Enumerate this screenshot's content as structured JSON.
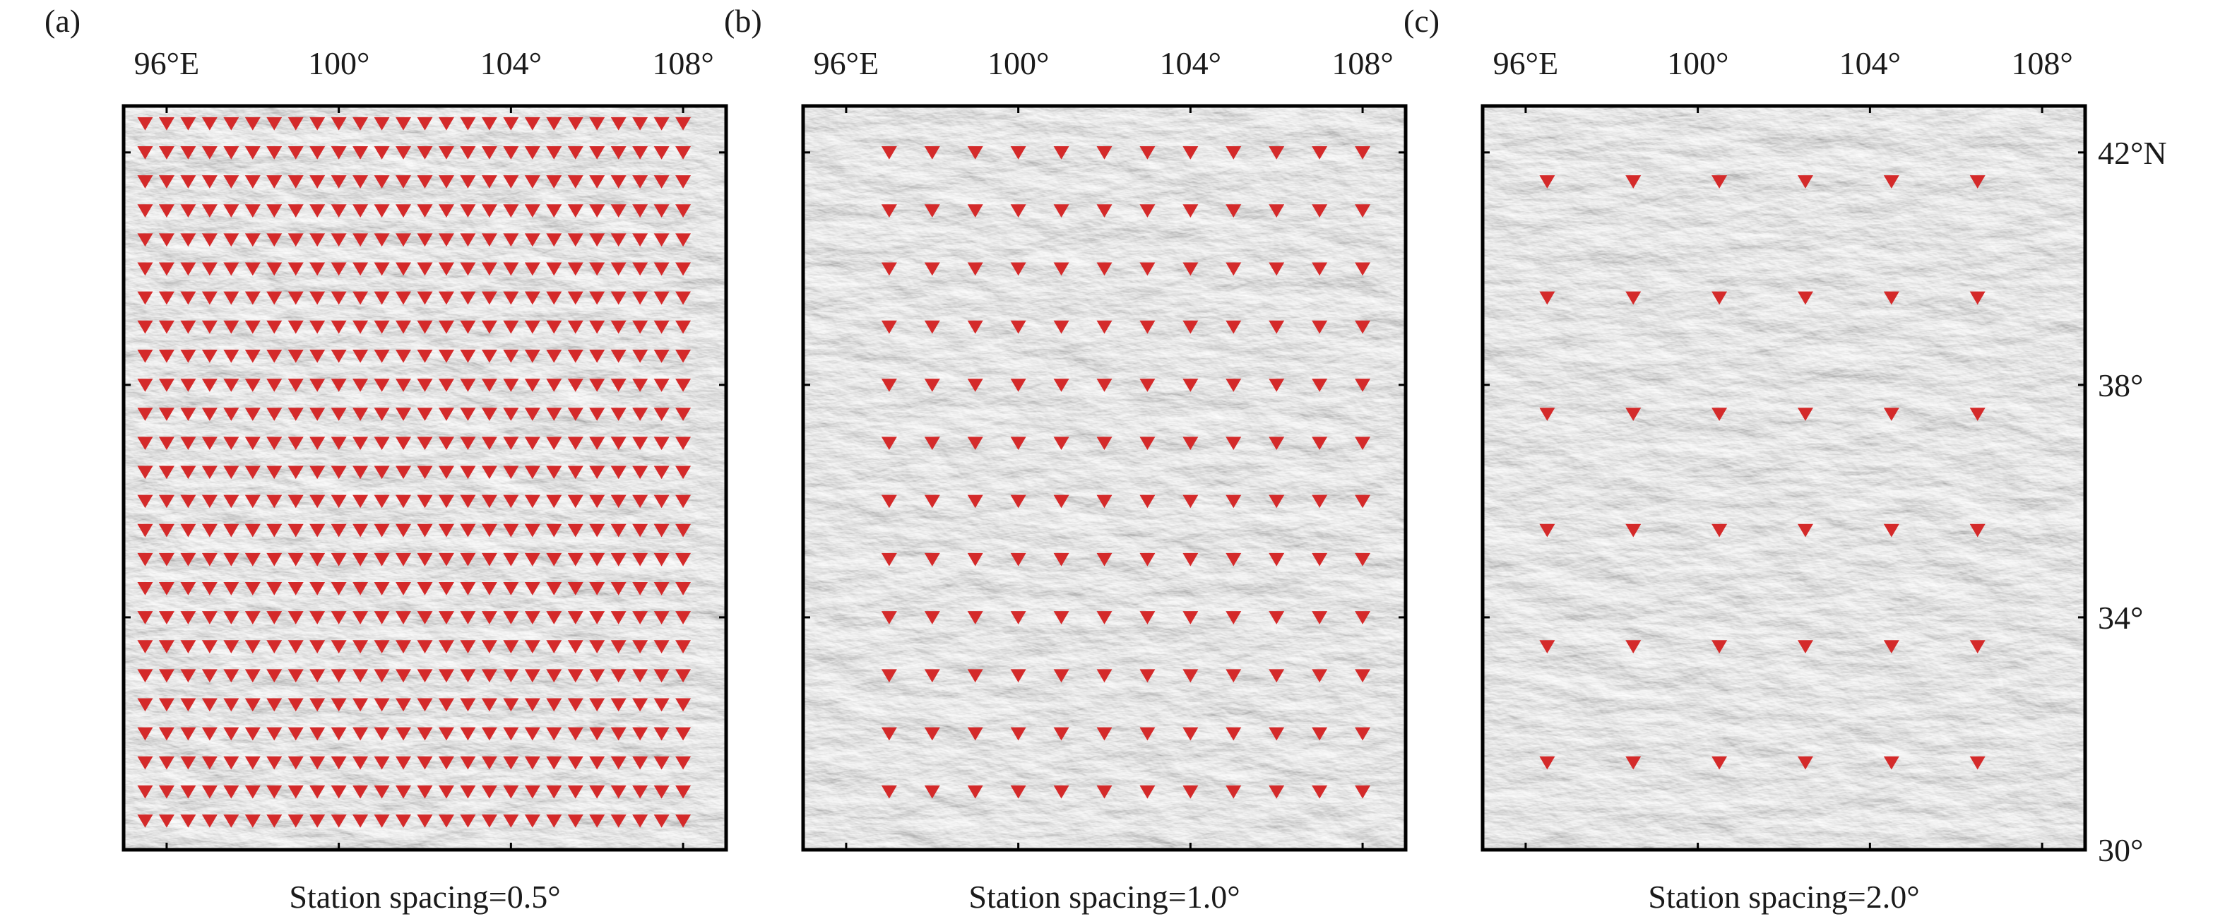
{
  "figure": {
    "lon_axis": {
      "range": [
        95.0,
        109.0
      ],
      "ticks": [
        {
          "value": 96,
          "label": "96°E"
        },
        {
          "value": 100,
          "label": "100°"
        },
        {
          "value": 104,
          "label": "104°"
        },
        {
          "value": 108,
          "label": "108°"
        }
      ]
    },
    "lat_axis": {
      "range": [
        30.0,
        42.8
      ],
      "ticks": [
        {
          "value": 42,
          "label": "42°N"
        },
        {
          "value": 38,
          "label": "38°"
        },
        {
          "value": 34,
          "label": "34°"
        },
        {
          "value": 30,
          "label": "30°"
        }
      ]
    },
    "station_marker": {
      "shape": "inverted-triangle",
      "color": "#d42a2a"
    },
    "basemap": {
      "style": "grey shaded relief"
    },
    "panels": [
      {
        "letter": "(a)",
        "caption": "Station spacing=0.5°",
        "spacing_deg": 0.5,
        "station_lons": [
          95.5,
          96.0,
          96.5,
          97.0,
          97.5,
          98.0,
          98.5,
          99.0,
          99.5,
          100.0,
          100.5,
          101.0,
          101.5,
          102.0,
          102.5,
          103.0,
          103.5,
          104.0,
          104.5,
          105.0,
          105.5,
          106.0,
          106.5,
          107.0,
          107.5,
          108.0
        ],
        "station_lats": [
          42.5,
          42.0,
          41.5,
          41.0,
          40.5,
          40.0,
          39.5,
          39.0,
          38.5,
          38.0,
          37.5,
          37.0,
          36.5,
          36.0,
          35.5,
          35.0,
          34.5,
          34.0,
          33.5,
          33.0,
          32.5,
          32.0,
          31.5,
          31.0,
          30.5
        ]
      },
      {
        "letter": "(b)",
        "caption": "Station spacing=1.0°",
        "spacing_deg": 1.0,
        "station_lons": [
          97.0,
          98.0,
          99.0,
          100.0,
          101.0,
          102.0,
          103.0,
          104.0,
          105.0,
          106.0,
          107.0,
          108.0
        ],
        "station_lats": [
          42.0,
          41.0,
          40.0,
          39.0,
          38.0,
          37.0,
          36.0,
          35.0,
          34.0,
          33.0,
          32.0,
          31.0
        ]
      },
      {
        "letter": "(c)",
        "caption": "Station spacing=2.0°",
        "spacing_deg": 2.0,
        "station_lons": [
          96.5,
          98.5,
          100.5,
          102.5,
          104.5,
          106.5
        ],
        "station_lats": [
          41.5,
          39.5,
          37.5,
          35.5,
          33.5,
          31.5
        ]
      }
    ]
  }
}
